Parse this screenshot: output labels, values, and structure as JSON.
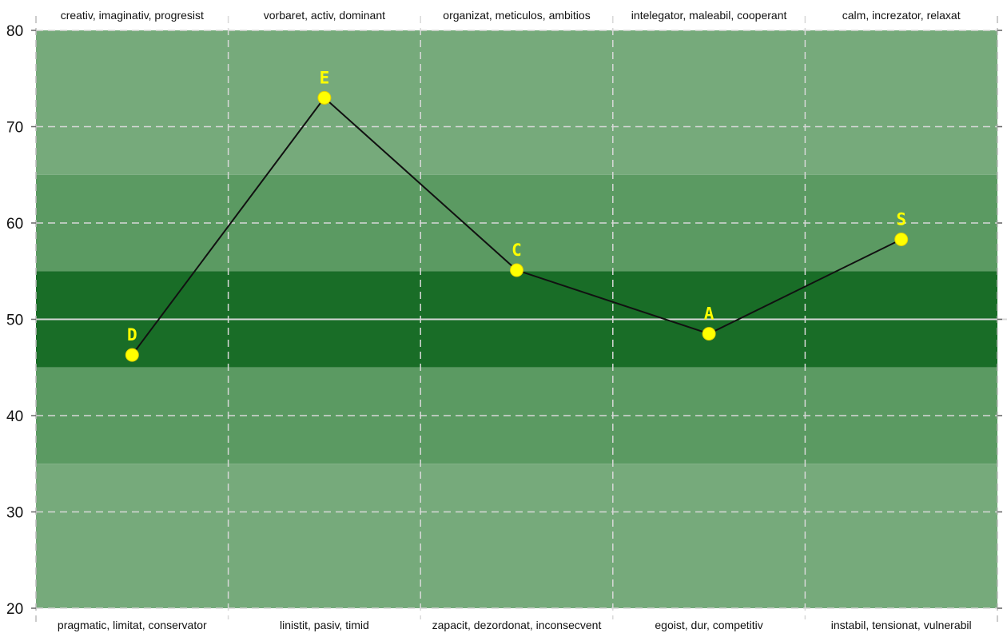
{
  "chart_data": {
    "type": "line",
    "categories": [
      "D",
      "E",
      "C",
      "A",
      "S"
    ],
    "values": [
      46.3,
      73.0,
      55.1,
      48.5,
      58.3
    ],
    "top_labels": [
      "creativ, imaginativ, progresist",
      "vorbaret, activ, dominant",
      "organizat, meticulos, ambitios",
      "intelegator, maleabil, cooperant",
      "calm, increzator, relaxat"
    ],
    "bottom_labels": [
      "pragmatic, limitat, conservator",
      "linistit, pasiv, timid",
      "zapacit, dezordonat, inconsecvent",
      "egoist, dur, competitiv",
      "instabil, tensionat, vulnerabil"
    ],
    "yticks": [
      80,
      70,
      60,
      50,
      40,
      30,
      20
    ],
    "ylim": [
      20,
      80
    ],
    "bands": [
      {
        "from": 65,
        "to": 80,
        "color": "#76aa7b"
      },
      {
        "from": 55,
        "to": 65,
        "color": "#5b9a62"
      },
      {
        "from": 45,
        "to": 55,
        "color": "#196d27"
      },
      {
        "from": 35,
        "to": 45,
        "color": "#5b9a62"
      },
      {
        "from": 20,
        "to": 35,
        "color": "#76aa7b"
      }
    ],
    "reference_line": 50,
    "grid": true,
    "colors": {
      "line": "#111111",
      "marker": "#ffff00",
      "marker_label": "#ffff00",
      "grid": "#d8d8d8",
      "reference": "#d8d8d8"
    }
  }
}
